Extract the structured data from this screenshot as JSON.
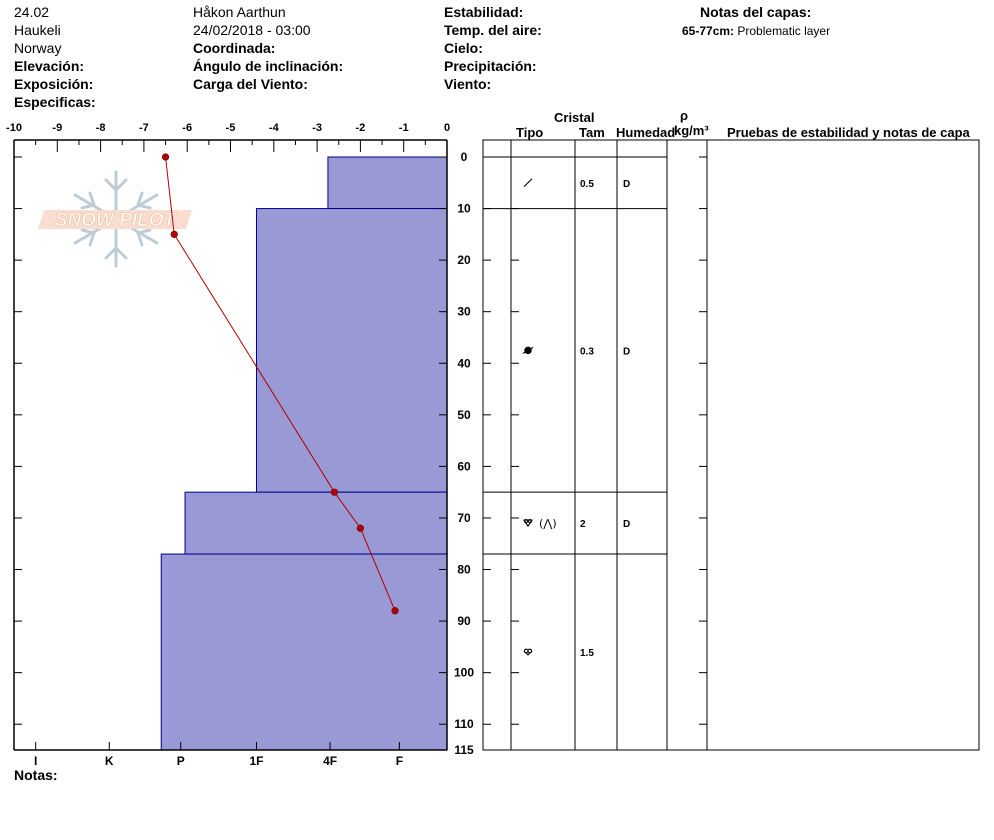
{
  "header": {
    "col1": [
      "24.02",
      "Haukeli",
      "Norway"
    ],
    "elevation_label": "Elevación:",
    "exposure_label": "Exposición:",
    "specifics_label": "Especificas:",
    "observer": "Håkon Aarthun",
    "datetime": "24/02/2018 - 03:00",
    "coord_label": "Coordinada:",
    "slope_label": "Ángulo de inclinación:",
    "wind_load_label": "Carga del Viento:",
    "stability_label": "Estabilidad:",
    "air_temp_label": "Temp. del aire:",
    "sky_label": "Cielo:",
    "precip_label": "Precipitación:",
    "wind_label": "Viento:",
    "layer_notes_title": "Notas del capas:",
    "layer_note_depth": "65-77cm:",
    "layer_note_text": "Problematic layer"
  },
  "logo": {
    "text": "SNOW PILOT"
  },
  "table_headers": {
    "crystal": "Cristal",
    "type": "Tipo",
    "size": "Tam",
    "moisture": "Humedad",
    "rho": "ρ",
    "density_unit": "kg/m³",
    "tests": "Pruebas de estabilidad y notas de capa"
  },
  "footer": {
    "notes_label": "Notas:"
  },
  "colors": {
    "layer_fill": "#9999d6",
    "layer_stroke": "#00008b",
    "temp_line": "#b30000"
  },
  "chart_data": {
    "type": "snow-profile",
    "temperature_axis": {
      "range": [
        -10,
        0
      ],
      "ticks": [
        "-10",
        "-9",
        "-8",
        "-7",
        "-6",
        "-5",
        "-4",
        "-3",
        "-2",
        "-1",
        "0"
      ]
    },
    "depth_axis": {
      "range": [
        0,
        115
      ],
      "ticks": [
        "0",
        "10",
        "20",
        "30",
        "40",
        "50",
        "60",
        "70",
        "80",
        "90",
        "100",
        "110",
        "115"
      ]
    },
    "hardness_axis": {
      "labels": [
        "I",
        "K",
        "P",
        "1F",
        "4F",
        "F"
      ],
      "positions_c": [
        -9.5,
        -7.8,
        -6.15,
        -4.4,
        -2.7,
        -1.1
      ]
    },
    "layers": [
      {
        "top": 0,
        "bottom": 10,
        "hardness_c": -2.75,
        "type_icon": "slash",
        "size": "0.5",
        "moisture": "D"
      },
      {
        "top": 10,
        "bottom": 65,
        "hardness_c": -4.4,
        "type_icon": "dot-circle",
        "size": "0.3",
        "moisture": "D"
      },
      {
        "top": 65,
        "bottom": 77,
        "hardness_c": -6.05,
        "type_icon": "depth-hoar",
        "type_extra": "(⋀)",
        "size": "2",
        "moisture": "D"
      },
      {
        "top": 77,
        "bottom": 115,
        "hardness_c": -6.6,
        "type_icon": "depth-hoar-small",
        "size": "1.5",
        "moisture": ""
      }
    ],
    "temperature_profile": [
      {
        "depth": 0,
        "temp": -6.5
      },
      {
        "depth": 15,
        "temp": -6.3
      },
      {
        "depth": 65,
        "temp": -2.6
      },
      {
        "depth": 72,
        "temp": -2.0
      },
      {
        "depth": 88,
        "temp": -1.2
      }
    ]
  }
}
